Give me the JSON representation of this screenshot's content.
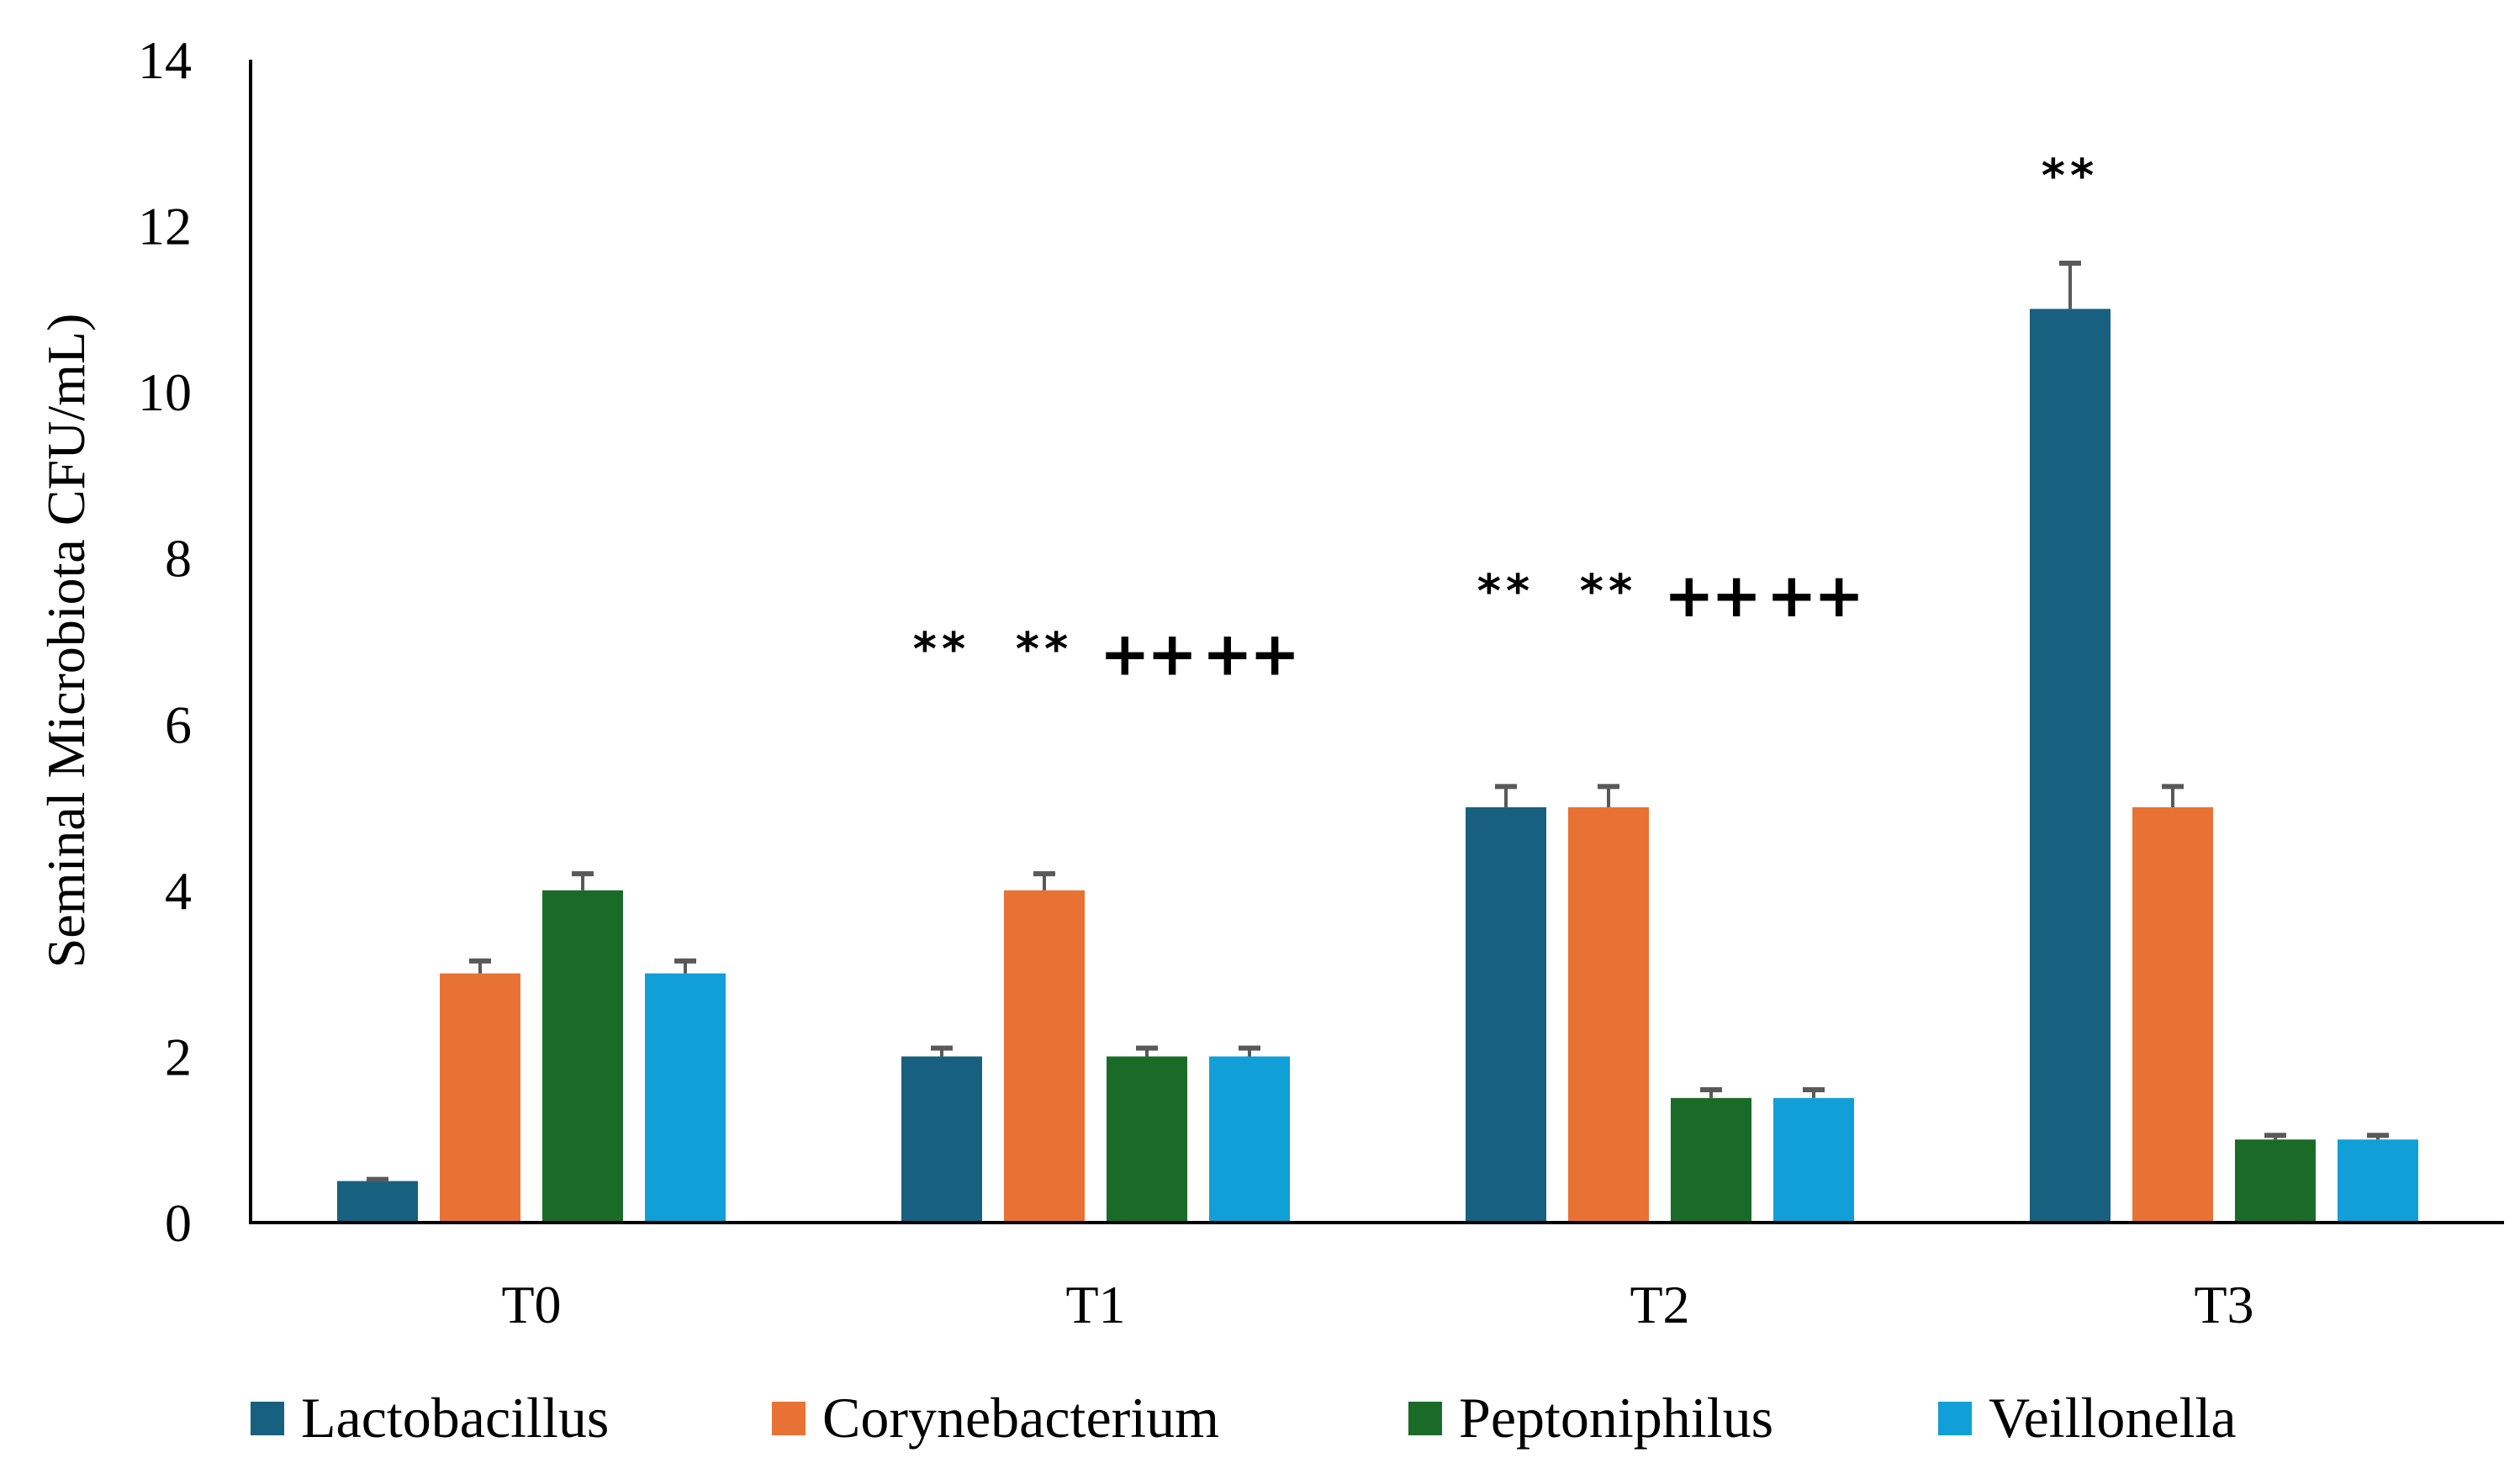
{
  "chart_data": {
    "type": "bar",
    "title": "",
    "xlabel": "",
    "ylabel": "Seminal Microbiota CFU/mL)",
    "ylim": [
      0,
      14
    ],
    "yticks": [
      0,
      2,
      4,
      6,
      8,
      10,
      12,
      14
    ],
    "grid": false,
    "legend_position": "bottom",
    "categories": [
      "T0",
      "T1",
      "T2",
      "T3"
    ],
    "series": [
      {
        "name": "Lactobacillus",
        "color": "#17607f",
        "values": [
          0.5,
          2,
          5,
          11
        ],
        "errors": [
          0.02,
          0.1,
          0.25,
          0.55
        ]
      },
      {
        "name": "Corynebacterium",
        "color": "#e87234",
        "values": [
          3,
          4,
          5,
          5
        ],
        "errors": [
          0.15,
          0.2,
          0.25,
          0.25
        ]
      },
      {
        "name": "Peptoniphilus",
        "color": "#1b6b28",
        "values": [
          4,
          2,
          1.5,
          1
        ],
        "errors": [
          0.2,
          0.1,
          0.1,
          0.05
        ]
      },
      {
        "name": "Veillonella",
        "color": "#109fd6",
        "values": [
          3,
          2,
          1.5,
          1
        ],
        "errors": [
          0.15,
          0.1,
          0.1,
          0.05
        ]
      }
    ],
    "error_bar_color": "#595959",
    "annotations": [
      {
        "category": 1,
        "series": 0,
        "text": "**",
        "y": 7.0
      },
      {
        "category": 1,
        "series": 1,
        "text": "**",
        "y": 7.0
      },
      {
        "category": 1,
        "series": 2,
        "text": "++",
        "y": 6.9
      },
      {
        "category": 1,
        "series": 3,
        "text": "++",
        "y": 6.9
      },
      {
        "category": 2,
        "series": 0,
        "text": "**",
        "y": 7.7
      },
      {
        "category": 2,
        "series": 1,
        "text": "**",
        "y": 7.7
      },
      {
        "category": 2,
        "series": 2,
        "text": "++",
        "y": 7.6
      },
      {
        "category": 2,
        "series": 3,
        "text": "++",
        "y": 7.6
      },
      {
        "category": 3,
        "series": 0,
        "text": "**",
        "y": 12.7
      }
    ]
  }
}
